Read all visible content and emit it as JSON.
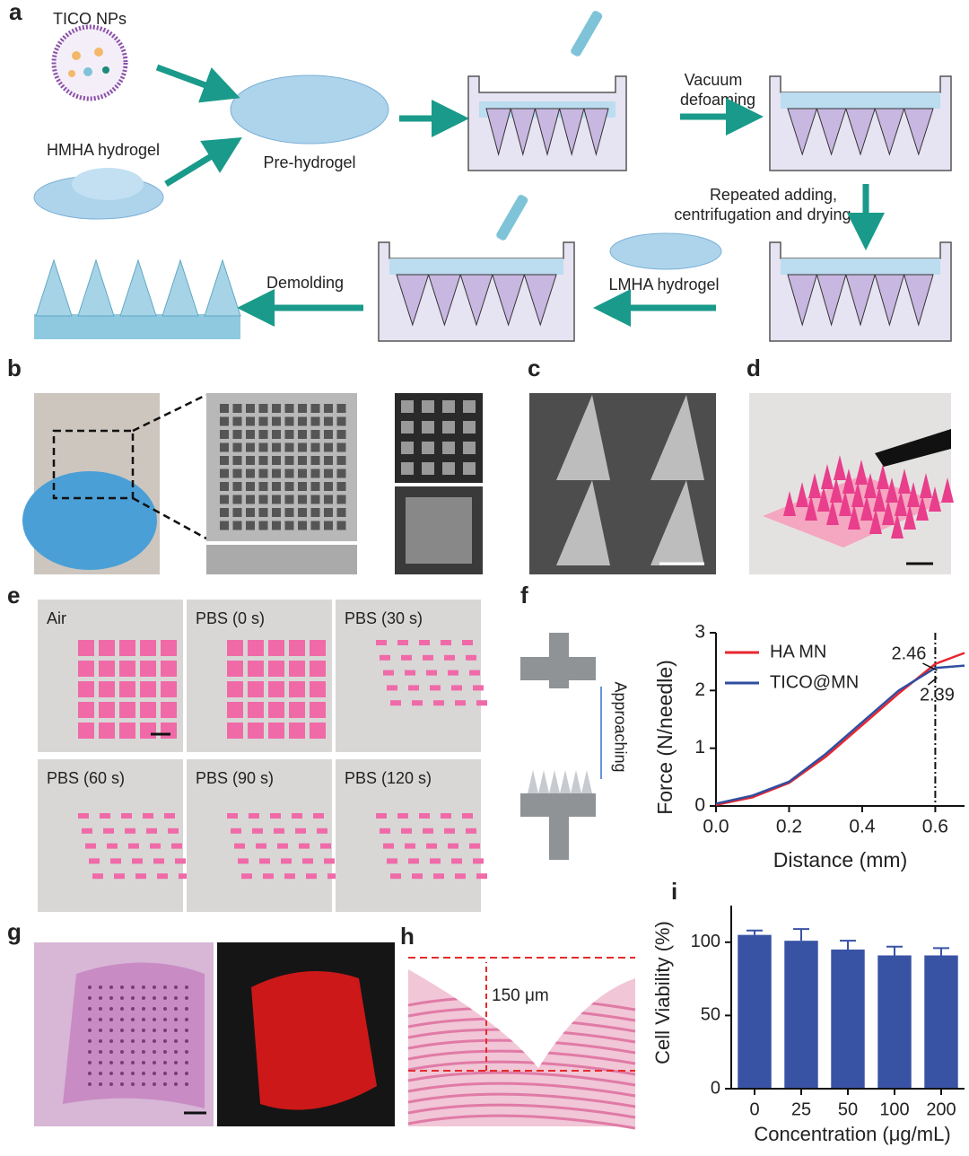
{
  "panel_labels": [
    "a",
    "b",
    "c",
    "d",
    "e",
    "f",
    "g",
    "h",
    "i"
  ],
  "schematic": {
    "tico_nps": "TICO NPs",
    "hmha_hydrogel": "HMHA hydrogel",
    "pre_hydrogel": "Pre-hydrogel",
    "vacuum": [
      "Vacuum",
      "defoaming"
    ],
    "repeated": [
      "Repeated adding,",
      "centrifugation and drying"
    ],
    "lmha_hydrogel": "LMHA hydrogel",
    "demolding": "Demolding"
  },
  "panel_e": {
    "labels": [
      "Air",
      "PBS (0 s)",
      "PBS (30 s)",
      "PBS (60 s)",
      "PBS (90 s)",
      "PBS (120 s)"
    ]
  },
  "panel_f": {
    "schematic_label": "Approaching"
  },
  "panel_h": {
    "depth_label": "150 μm"
  },
  "chart_data": [
    {
      "type": "line",
      "xlabel": "Distance (mm)",
      "ylabel": "Force (N/needle)",
      "x": [
        0,
        0.1,
        0.2,
        0.3,
        0.4,
        0.5,
        0.6,
        0.68
      ],
      "series": [
        {
          "name": "HA MN",
          "color": "#e8262f",
          "values": [
            0.02,
            0.15,
            0.4,
            0.85,
            1.4,
            1.95,
            2.46,
            2.65
          ]
        },
        {
          "name": "TICO@MN",
          "color": "#2f4ea0",
          "values": [
            0.04,
            0.18,
            0.42,
            0.9,
            1.45,
            2.0,
            2.39,
            2.43
          ]
        }
      ],
      "annotations": [
        "2.46",
        "2.39"
      ],
      "reference_x": 0.6,
      "xlim": [
        0,
        0.68
      ],
      "xticks": [
        {
          "value": 0,
          "label": "0.0"
        },
        0.2,
        0.4,
        0.6
      ],
      "ylim": [
        0,
        3
      ],
      "yticks": [
        0,
        1,
        2,
        3
      ],
      "legend": "upper left"
    },
    {
      "type": "bar",
      "xlabel": "Concentration (μg/mL)",
      "ylabel": "Cell Viability (%)",
      "categories": [
        "0",
        "25",
        "50",
        "100",
        "200"
      ],
      "values": [
        105,
        101,
        95,
        91,
        91
      ],
      "errors": [
        3,
        8,
        6,
        6,
        5
      ],
      "color": "#3953a4",
      "ylim": [
        0,
        125
      ],
      "yticks": [
        0,
        50,
        100
      ]
    }
  ]
}
